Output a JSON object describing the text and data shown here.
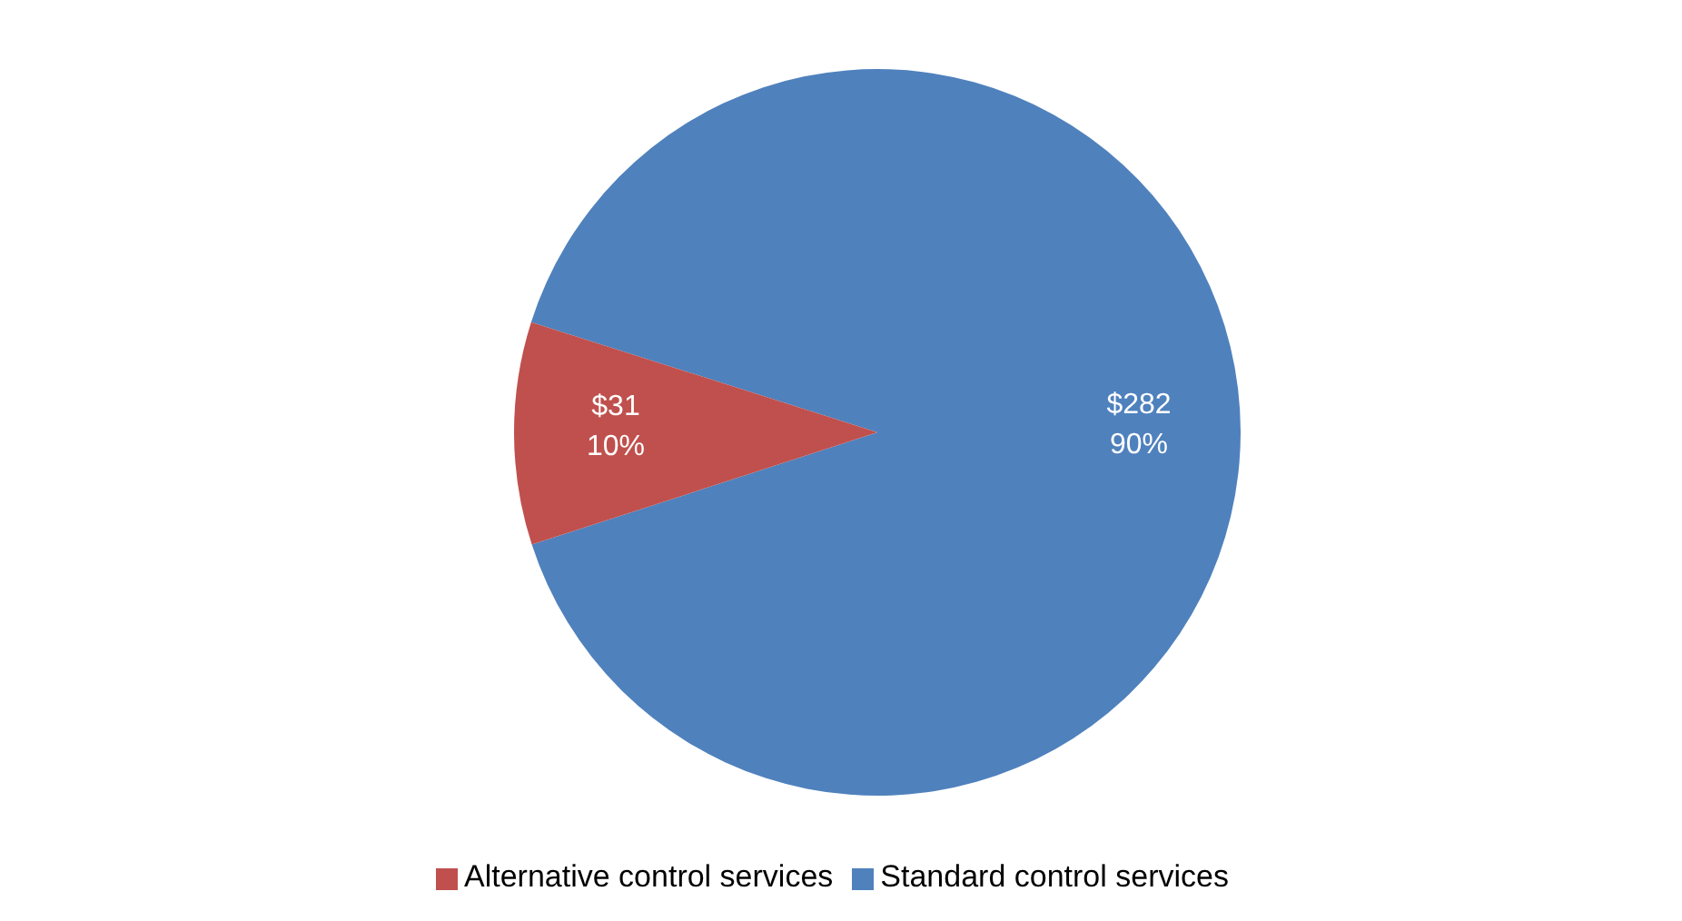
{
  "chart_data": {
    "type": "pie",
    "categories": [
      "Standard control services",
      "Alternative control services"
    ],
    "values": [
      282,
      31
    ],
    "colors": [
      "#4f81bd",
      "#c0504d"
    ],
    "value_labels": [
      "$282\n90%",
      "$31\n10%"
    ],
    "legend": "bottom"
  }
}
